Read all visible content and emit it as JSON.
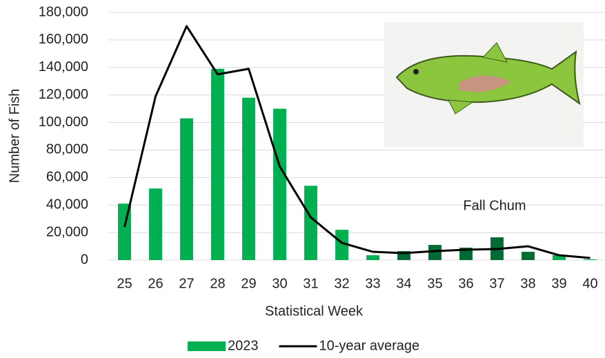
{
  "chart_data": {
    "type": "bar_line",
    "y_label": "Number of Fish",
    "x_label": "Statistical Week",
    "annotation": "Fall Chum",
    "categories": [
      "25",
      "26",
      "27",
      "28",
      "29",
      "30",
      "31",
      "32",
      "33",
      "34",
      "35",
      "36",
      "37",
      "38",
      "39",
      "40"
    ],
    "series": [
      {
        "name": "2023",
        "type": "bar",
        "color": "#00b050",
        "colors": [
          "#00b050",
          "#00b050",
          "#00b050",
          "#00b050",
          "#00b050",
          "#00b050",
          "#00b050",
          "#00b050",
          "#00b050",
          "#006b35",
          "#006b35",
          "#006b35",
          "#006b35",
          "#006b35",
          "#00b050",
          "#00b050"
        ],
        "values": [
          41000,
          52000,
          103000,
          139000,
          118000,
          110000,
          54000,
          22000,
          3500,
          6500,
          11000,
          9000,
          16500,
          6000,
          3500,
          500
        ]
      },
      {
        "name": "10-year average",
        "type": "line",
        "color": "#000000",
        "values": [
          24000,
          119000,
          170000,
          135000,
          139000,
          68000,
          31000,
          12500,
          6000,
          5000,
          6500,
          7500,
          8000,
          10000,
          3500,
          1500
        ]
      }
    ],
    "ylim": [
      0,
      180000
    ],
    "yticks": [
      0,
      {
        "value": 20000,
        "label": "20,000"
      },
      {
        "value": 40000,
        "label": "40,000"
      },
      {
        "value": 60000,
        "label": "60,000"
      },
      {
        "value": 80000,
        "label": "80,000"
      },
      {
        "value": 100000,
        "label": "100,000"
      },
      {
        "value": 120000,
        "label": "120,000"
      },
      {
        "value": 140000,
        "label": "140,000"
      },
      {
        "value": 160000,
        "label": "160,000"
      },
      {
        "value": 180000,
        "label": "180,000"
      }
    ],
    "grid": true,
    "legend": "bottom"
  }
}
